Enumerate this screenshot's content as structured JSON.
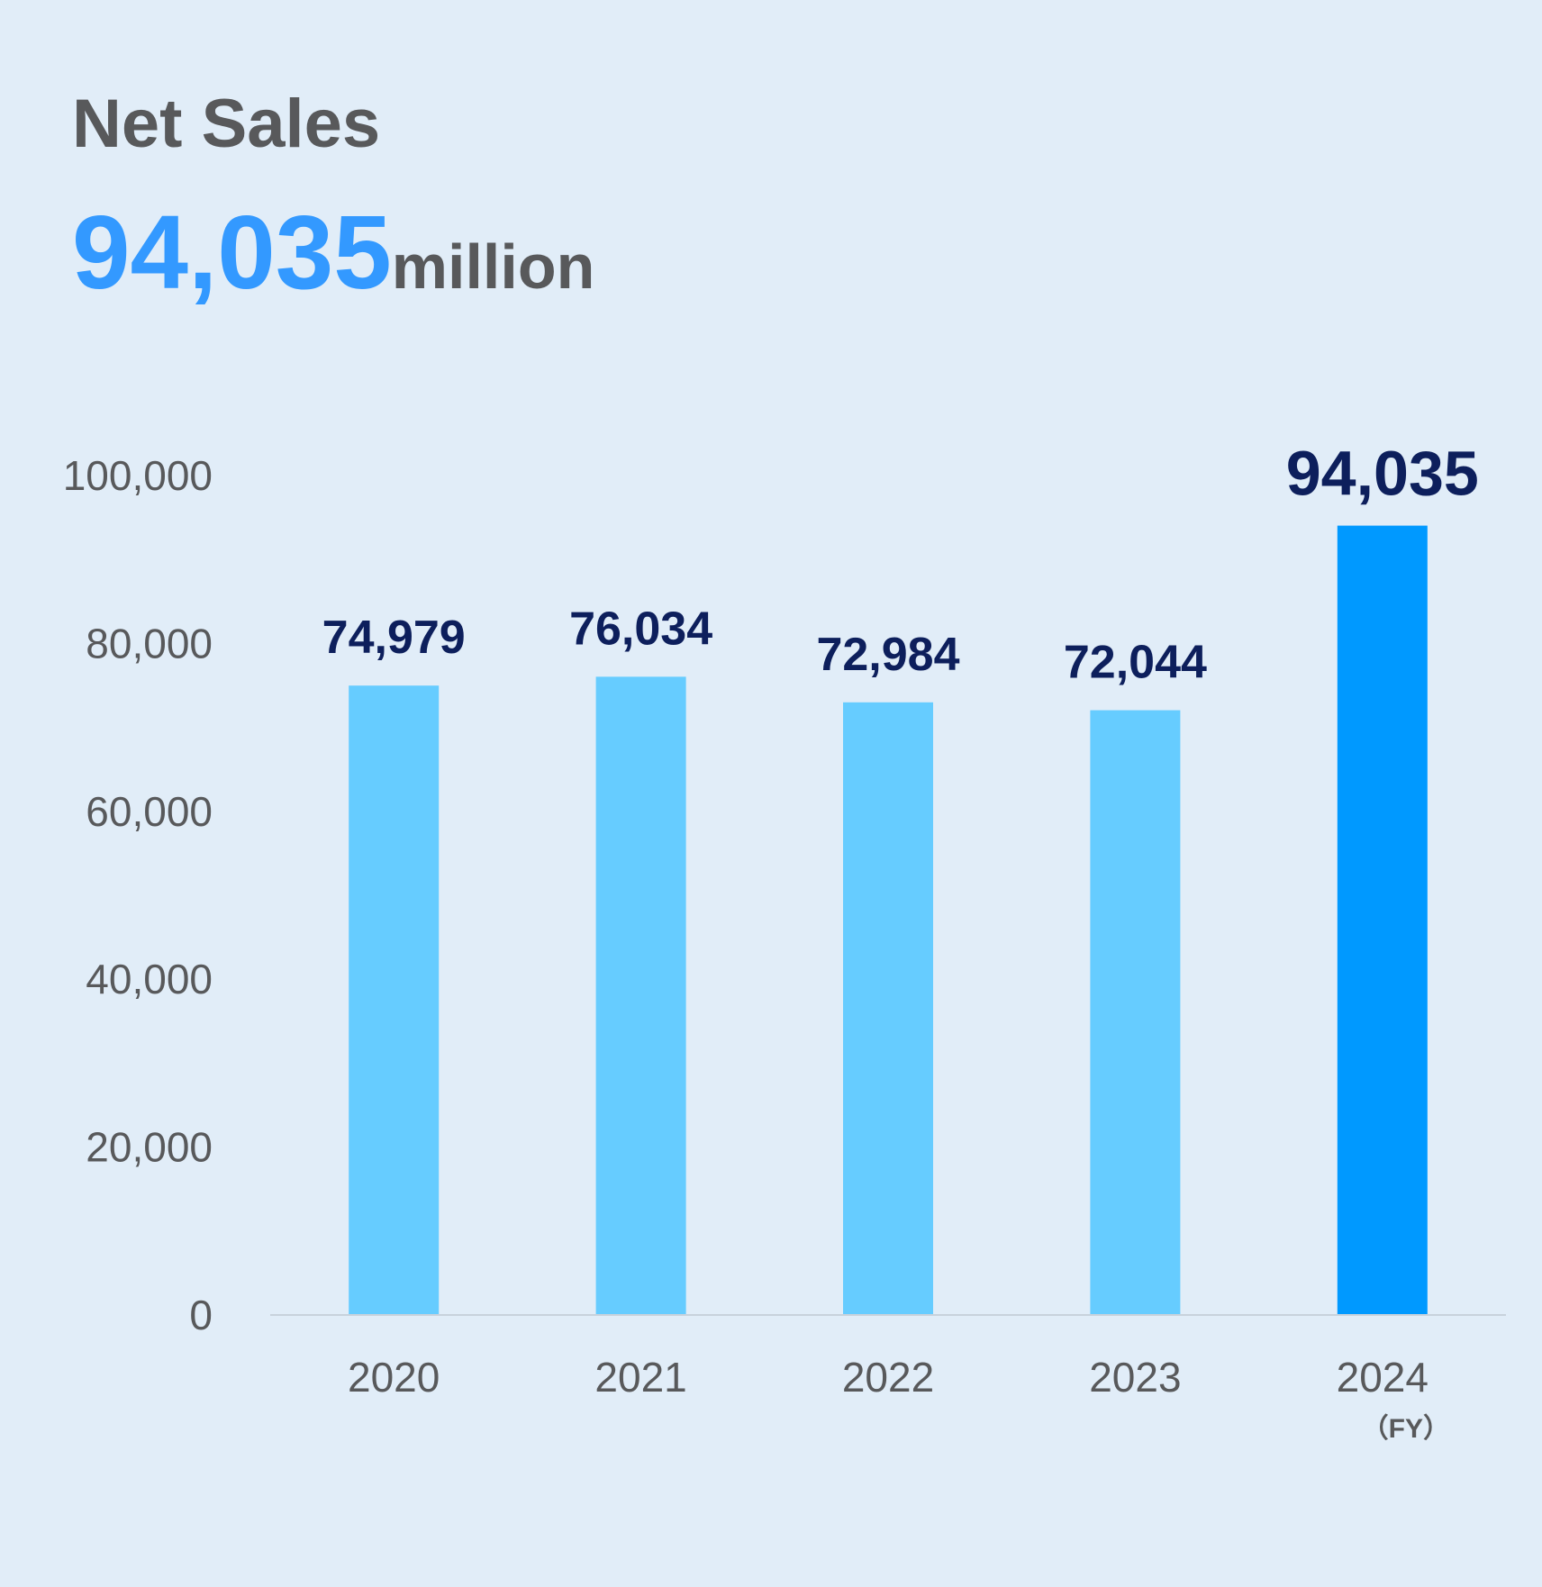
{
  "header": {
    "title": "Net Sales",
    "headline_value": "94,035",
    "headline_unit": "million"
  },
  "colors": {
    "background": "#e1edf8",
    "bar": "#66ccff",
    "bar_highlight": "#0099ff",
    "data_label": "#0d1f5c",
    "headline_value": "#3399ff",
    "text": "#58595b"
  },
  "chart_data": {
    "type": "bar",
    "title": "Net Sales",
    "categories": [
      "2020",
      "2021",
      "2022",
      "2023",
      "2024"
    ],
    "values": [
      74979,
      76034,
      72984,
      72044,
      94035
    ],
    "value_labels": [
      "74,979",
      "76,034",
      "72,984",
      "72,044",
      "94,035"
    ],
    "highlight_index": 4,
    "xlabel": "",
    "ylabel": "",
    "x_unit_label": "（FY）",
    "ylim": [
      0,
      100000
    ],
    "y_ticks": [
      0,
      20000,
      40000,
      60000,
      80000,
      100000
    ],
    "y_tick_labels": [
      "0",
      "20,000",
      "40,000",
      "60,000",
      "80,000",
      "100,000"
    ],
    "grid": false,
    "legend": "none"
  }
}
